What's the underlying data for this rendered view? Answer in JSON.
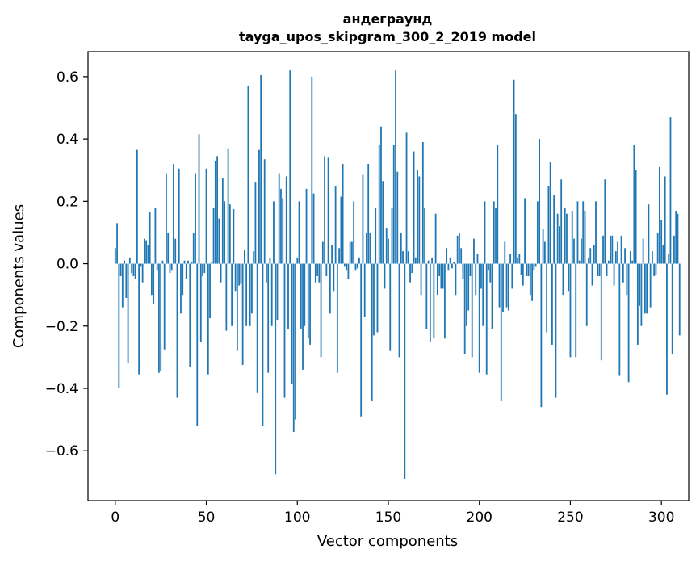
{
  "chart_data": {
    "type": "bar",
    "title": "андеграунд",
    "subtitle": "tayga_upos_skipgram_300_2_2019 model",
    "xlabel": "Vector components",
    "ylabel": "Components values",
    "xlim": [
      -15,
      315
    ],
    "ylim": [
      -0.76,
      0.68
    ],
    "xticks": [
      0,
      50,
      100,
      150,
      200,
      250,
      300
    ],
    "yticks": [
      -0.6,
      -0.4,
      -0.2,
      0.0,
      0.2,
      0.4,
      0.6
    ],
    "ytick_labels": [
      "−0.6",
      "−0.4",
      "−0.2",
      "0.0",
      "0.2",
      "0.4",
      "0.6"
    ],
    "grid": false,
    "bar_color": "#1f77b4",
    "values": [
      0.05,
      0.13,
      -0.4,
      -0.04,
      -0.14,
      0.01,
      -0.11,
      -0.32,
      0.02,
      -0.03,
      -0.04,
      -0.05,
      0.365,
      -0.355,
      -0.01,
      -0.06,
      0.08,
      0.075,
      0.06,
      0.165,
      -0.1,
      -0.13,
      0.18,
      -0.02,
      -0.35,
      -0.345,
      0.01,
      -0.275,
      0.29,
      0.1,
      -0.03,
      -0.02,
      0.32,
      0.08,
      -0.43,
      0.305,
      -0.16,
      -0.1,
      0.01,
      -0.05,
      0.01,
      -0.33,
      0.005,
      0.1,
      0.29,
      -0.52,
      0.415,
      -0.25,
      -0.04,
      -0.03,
      0.305,
      -0.355,
      -0.175,
      0.005,
      0.18,
      0.33,
      0.345,
      0.145,
      -0.06,
      0.275,
      0.2,
      -0.215,
      0.37,
      0.19,
      -0.2,
      0.175,
      -0.09,
      -0.28,
      -0.07,
      -0.065,
      -0.325,
      0.045,
      -0.2,
      0.57,
      -0.2,
      -0.16,
      0.04,
      0.26,
      -0.415,
      0.365,
      0.605,
      -0.52,
      0.335,
      -0.06,
      -0.35,
      0.02,
      -0.2,
      0.2,
      -0.675,
      -0.18,
      0.29,
      0.24,
      0.21,
      -0.43,
      0.28,
      -0.21,
      0.62,
      -0.385,
      -0.54,
      -0.5,
      0.02,
      0.2,
      -0.21,
      -0.34,
      -0.2,
      0.24,
      -0.24,
      -0.26,
      0.6,
      0.225,
      -0.06,
      -0.04,
      -0.06,
      -0.3,
      0.07,
      0.345,
      -0.04,
      0.34,
      -0.16,
      0.06,
      -0.09,
      0.25,
      -0.35,
      0.05,
      0.215,
      0.32,
      -0.01,
      -0.02,
      -0.05,
      0.07,
      0.07,
      0.2,
      -0.02,
      -0.015,
      0.02,
      -0.49,
      0.285,
      -0.17,
      0.1,
      0.32,
      0.1,
      -0.44,
      -0.23,
      0.18,
      -0.22,
      0.38,
      0.44,
      0.265,
      -0.08,
      0.115,
      0.08,
      -0.28,
      0.18,
      0.38,
      0.62,
      0.295,
      -0.3,
      0.1,
      0.04,
      -0.69,
      0.42,
      0.04,
      -0.06,
      -0.03,
      0.36,
      0.02,
      0.3,
      0.28,
      -0.1,
      0.39,
      0.18,
      -0.21,
      0.01,
      -0.25,
      0.02,
      -0.24,
      0.16,
      -0.1,
      -0.04,
      -0.08,
      -0.08,
      -0.24,
      0.05,
      -0.02,
      0.02,
      -0.015,
      0.005,
      -0.1,
      0.09,
      0.1,
      0.05,
      -0.05,
      -0.29,
      -0.2,
      -0.15,
      -0.04,
      -0.3,
      0.08,
      -0.1,
      0.03,
      -0.35,
      -0.08,
      -0.2,
      0.2,
      -0.355,
      -0.02,
      -0.06,
      -0.21,
      0.2,
      0.18,
      0.38,
      -0.14,
      -0.44,
      -0.155,
      0.07,
      -0.14,
      -0.15,
      0.03,
      -0.08,
      0.59,
      0.48,
      0.02,
      0.03,
      -0.035,
      -0.07,
      0.21,
      -0.04,
      -0.04,
      -0.1,
      -0.12,
      -0.02,
      -0.01,
      0.2,
      0.4,
      -0.46,
      0.11,
      0.07,
      -0.22,
      0.25,
      0.325,
      -0.26,
      0.22,
      -0.43,
      0.16,
      0.12,
      0.27,
      -0.1,
      0.18,
      0.16,
      -0.09,
      -0.3,
      0.17,
      0.08,
      -0.3,
      0.2,
      0.01,
      0.08,
      0.2,
      0.17,
      -0.2,
      0.02,
      0.05,
      -0.07,
      0.06,
      0.2,
      -0.04,
      -0.04,
      -0.31,
      0.09,
      0.27,
      -0.04,
      0.01,
      0.09,
      0.09,
      -0.07,
      0.04,
      0.07,
      -0.36,
      0.09,
      -0.06,
      0.05,
      -0.1,
      -0.38,
      0.04,
      0.01,
      0.38,
      0.3,
      -0.26,
      -0.135,
      -0.2,
      0.08,
      -0.16,
      -0.16,
      0.19,
      -0.14,
      0.04,
      -0.04,
      -0.035,
      0.1,
      0.31,
      0.14,
      0.06,
      0.28,
      -0.42,
      0.03,
      0.47,
      -0.29,
      0.09,
      0.17,
      0.16,
      -0.23
    ]
  }
}
